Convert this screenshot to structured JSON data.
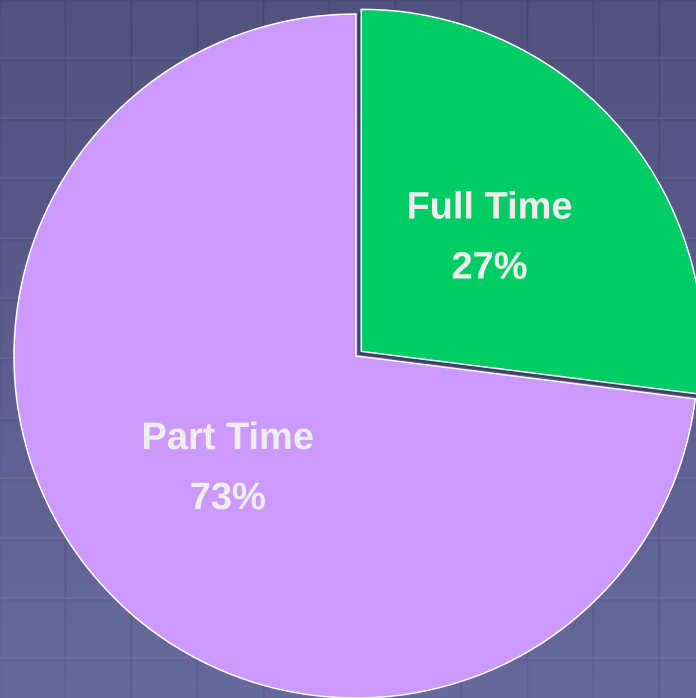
{
  "chart_data": {
    "type": "pie",
    "categories": [
      "Full Time",
      "Part Time"
    ],
    "values": [
      27,
      73
    ],
    "value_labels": [
      "27%",
      "73%"
    ],
    "colors": [
      "#00cc66",
      "#cc99ff"
    ]
  }
}
